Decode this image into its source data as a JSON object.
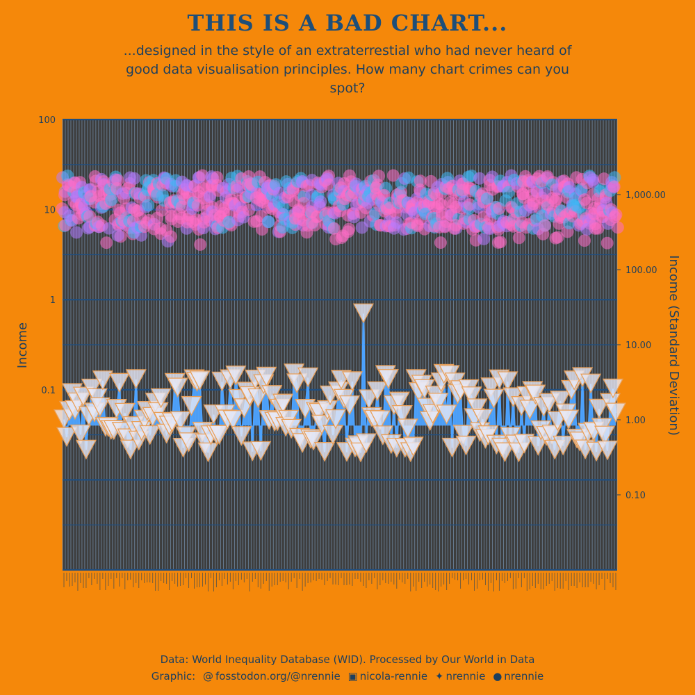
{
  "header": {
    "title": "THIS IS A BAD CHART...",
    "subtitle": "...designed in the style of an extraterrestial who had never heard of good data visualisation principles. How many chart crimes can you spot?"
  },
  "caption": {
    "source": "Data: World Inequality Database (WID). Processed by Our World in Data",
    "graphic_prefix": "Graphic:",
    "mastodon": "fosstodon.org/@nrennie",
    "linkedin": "nicola-rennie",
    "bluesky": "nrennie",
    "github": "nrennie"
  },
  "colors": {
    "background": "#F5880A",
    "panel": "#3D3D3D",
    "text": "#1D3F5E",
    "points_a": "#FF6EC7",
    "points_b": "#3FB8F5",
    "line": "#4DA3FF",
    "triangle": "#E9E9F5"
  },
  "chart_data": {
    "type": "scatter",
    "title": "",
    "ylabel": "Income",
    "ylabel_right": "Income (Standard Deviation)",
    "y_scale": "log",
    "ylim": [
      0.001,
      100
    ],
    "y_ticks": [
      "100",
      "10",
      "1",
      "0.1"
    ],
    "ylim_right": [
      0.01,
      10000
    ],
    "y_ticks_right": [
      "1,000.00",
      "100.00",
      "10.00",
      "1.00",
      "0.10"
    ],
    "grid": true,
    "legend": "none",
    "summary": {
      "mean_income_range": [
        4,
        30
      ],
      "std_income_range": [
        0.02,
        0.7
      ]
    }
  }
}
